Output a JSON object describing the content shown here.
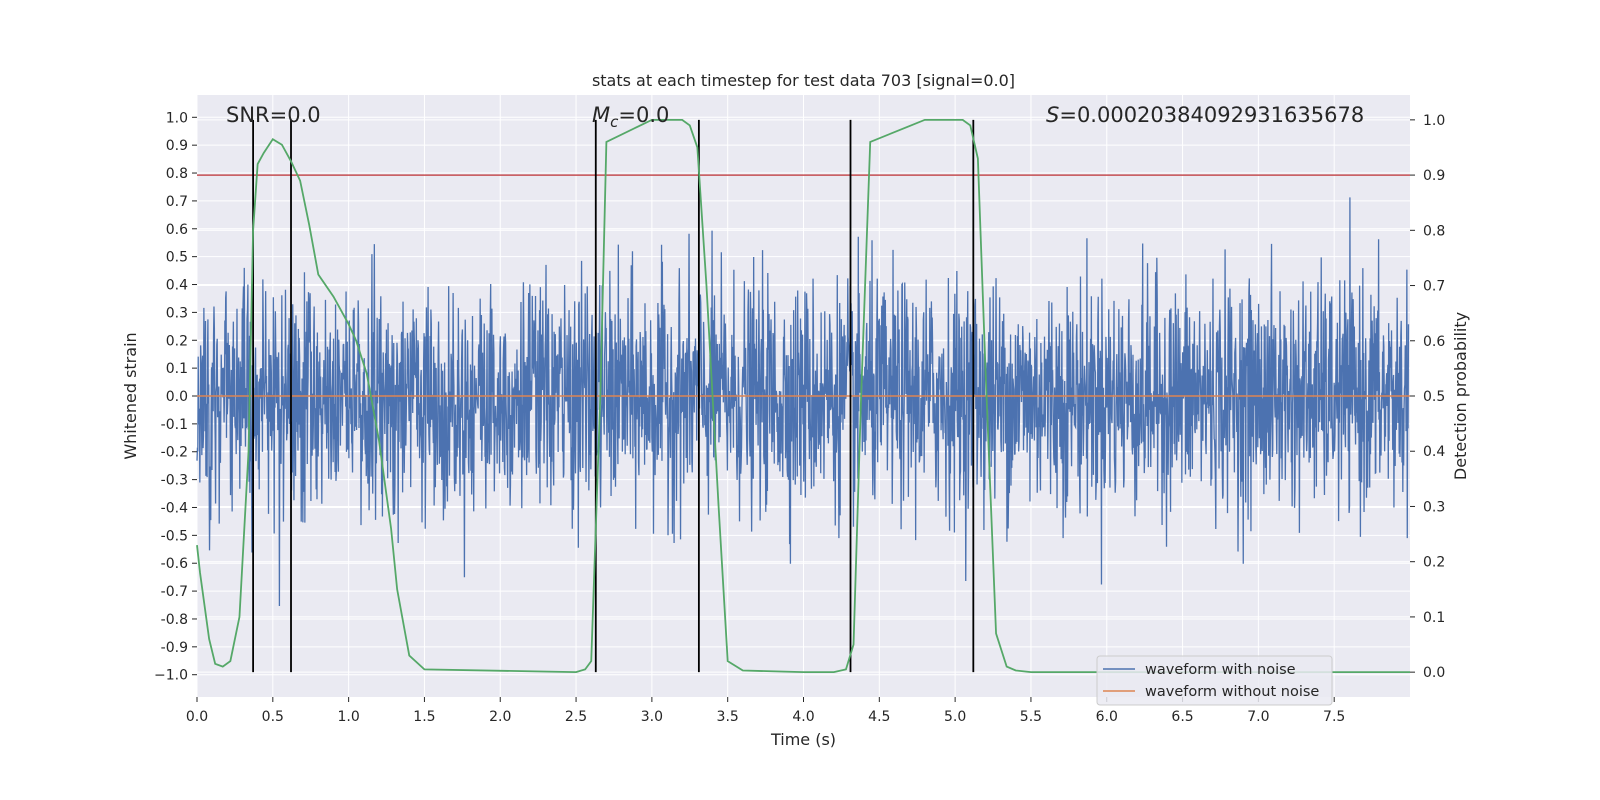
{
  "chart_data": {
    "type": "line",
    "title": "stats at each timestep for test data 703 [signal=0.0]",
    "xlabel": "Time (s)",
    "ylabel": "Whitened strain",
    "ylabel_right": "Detection probability",
    "xlim": [
      0.0,
      8.0
    ],
    "ylim": [
      -1.08,
      1.08
    ],
    "ylim_right": [
      -0.045,
      1.045
    ],
    "xticks": [
      0.0,
      0.5,
      1.0,
      1.5,
      2.0,
      2.5,
      3.0,
      3.5,
      4.0,
      4.5,
      5.0,
      5.5,
      6.0,
      6.5,
      7.0,
      7.5
    ],
    "xtick_labels": [
      "0.0",
      "0.5",
      "1.0",
      "1.5",
      "2.0",
      "2.5",
      "3.0",
      "3.5",
      "4.0",
      "4.5",
      "5.0",
      "5.5",
      "6.0",
      "6.5",
      "7.0",
      "7.5"
    ],
    "yticks": [
      1.0,
      0.9,
      0.8,
      0.7,
      0.6,
      0.5,
      0.4,
      0.3,
      0.2,
      0.1,
      0.0,
      -0.1,
      -0.2,
      -0.3,
      -0.4,
      -0.5,
      -0.6,
      -0.7,
      -0.8,
      -0.9,
      -1.0
    ],
    "ytick_labels": [
      "1.0",
      "0.9",
      "0.8",
      "0.7",
      "0.6",
      "0.5",
      "0.4",
      "0.3",
      "0.2",
      "0.1",
      "0.0",
      "-0.1",
      "-0.2",
      "-0.3",
      "-0.4",
      "-0.5",
      "-0.6",
      "-0.7",
      "-0.8",
      "-0.9",
      "−1.0"
    ],
    "yticks_right": [
      1.0,
      0.9,
      0.8,
      0.7,
      0.6,
      0.5,
      0.4,
      0.3,
      0.2,
      0.1,
      0.0
    ],
    "ytick_labels_right": [
      "1.0",
      "0.9",
      "0.8",
      "0.7",
      "0.6",
      "0.5",
      "0.4",
      "0.3",
      "0.2",
      "0.1",
      "0.0"
    ],
    "annotations": {
      "snr": "SNR=0.0",
      "mc_symbol": "M",
      "mc_sub": "c",
      "mc_value": "=0.0",
      "s_symbol": "S",
      "s_value": "=0.00020384092931635678"
    },
    "threshold_right": 0.9,
    "vertical_lines_x": [
      0.37,
      0.62,
      2.63,
      3.31,
      4.31,
      5.12
    ],
    "series": [
      {
        "name": "waveform with noise",
        "color": "#4c72b0",
        "axis": "left",
        "samples": 3000,
        "noise_sigma": 0.2
      },
      {
        "name": "waveform without noise",
        "color": "#dd8452",
        "axis": "left",
        "x": [
          0.0,
          8.0
        ],
        "y": [
          0.0,
          0.0
        ]
      },
      {
        "name": "detection probability",
        "color": "#55a868",
        "axis": "right",
        "x": [
          0.0,
          0.02,
          0.08,
          0.12,
          0.17,
          0.22,
          0.28,
          0.34,
          0.37,
          0.4,
          0.44,
          0.5,
          0.56,
          0.62,
          0.68,
          0.74,
          0.8,
          0.9,
          1.0,
          1.05,
          1.12,
          1.2,
          1.28,
          1.32,
          1.4,
          1.5,
          2.5,
          2.56,
          2.6,
          2.66,
          2.7,
          3.0,
          3.2,
          3.25,
          3.3,
          3.36,
          3.44,
          3.5,
          3.6,
          4.0,
          4.2,
          4.28,
          4.33,
          4.38,
          4.44,
          4.8,
          5.05,
          5.1,
          5.15,
          5.2,
          5.27,
          5.34,
          5.4,
          5.5,
          8.0
        ],
        "y": [
          0.23,
          0.18,
          0.06,
          0.015,
          0.01,
          0.02,
          0.1,
          0.4,
          0.8,
          0.92,
          0.94,
          0.965,
          0.955,
          0.925,
          0.89,
          0.81,
          0.72,
          0.68,
          0.63,
          0.6,
          0.54,
          0.42,
          0.26,
          0.15,
          0.03,
          0.005,
          0.0,
          0.005,
          0.02,
          0.5,
          0.96,
          1.0,
          1.0,
          0.99,
          0.95,
          0.7,
          0.3,
          0.02,
          0.003,
          0.0,
          0.0,
          0.005,
          0.05,
          0.5,
          0.96,
          1.0,
          1.0,
          0.99,
          0.93,
          0.55,
          0.07,
          0.01,
          0.003,
          0.0,
          0.0
        ]
      }
    ],
    "legend_placement": "lower-right",
    "colors": {
      "plot_bg": "#eaeaf2",
      "grid": "#ffffff",
      "threshold": "#c44e52",
      "vline": "#000000"
    }
  }
}
